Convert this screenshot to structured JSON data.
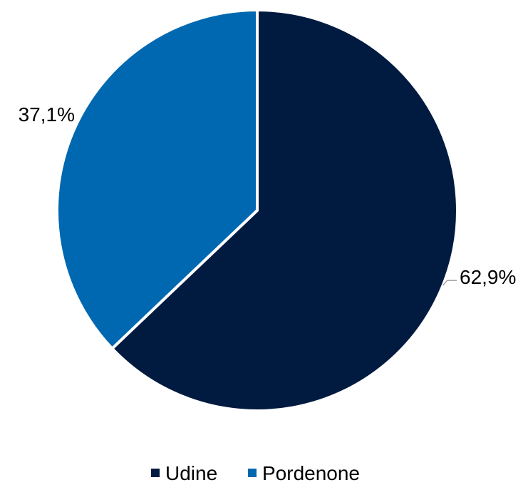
{
  "chart_data": {
    "type": "pie",
    "categories": [
      "Udine",
      "Pordenone"
    ],
    "values": [
      62.9,
      37.1
    ],
    "data_labels": [
      "62,9%",
      "37,1%"
    ],
    "colors": [
      "#001a40",
      "#0068b0"
    ],
    "start_angle_deg": 0,
    "direction": "clockwise",
    "legend_position": "bottom",
    "title": ""
  }
}
